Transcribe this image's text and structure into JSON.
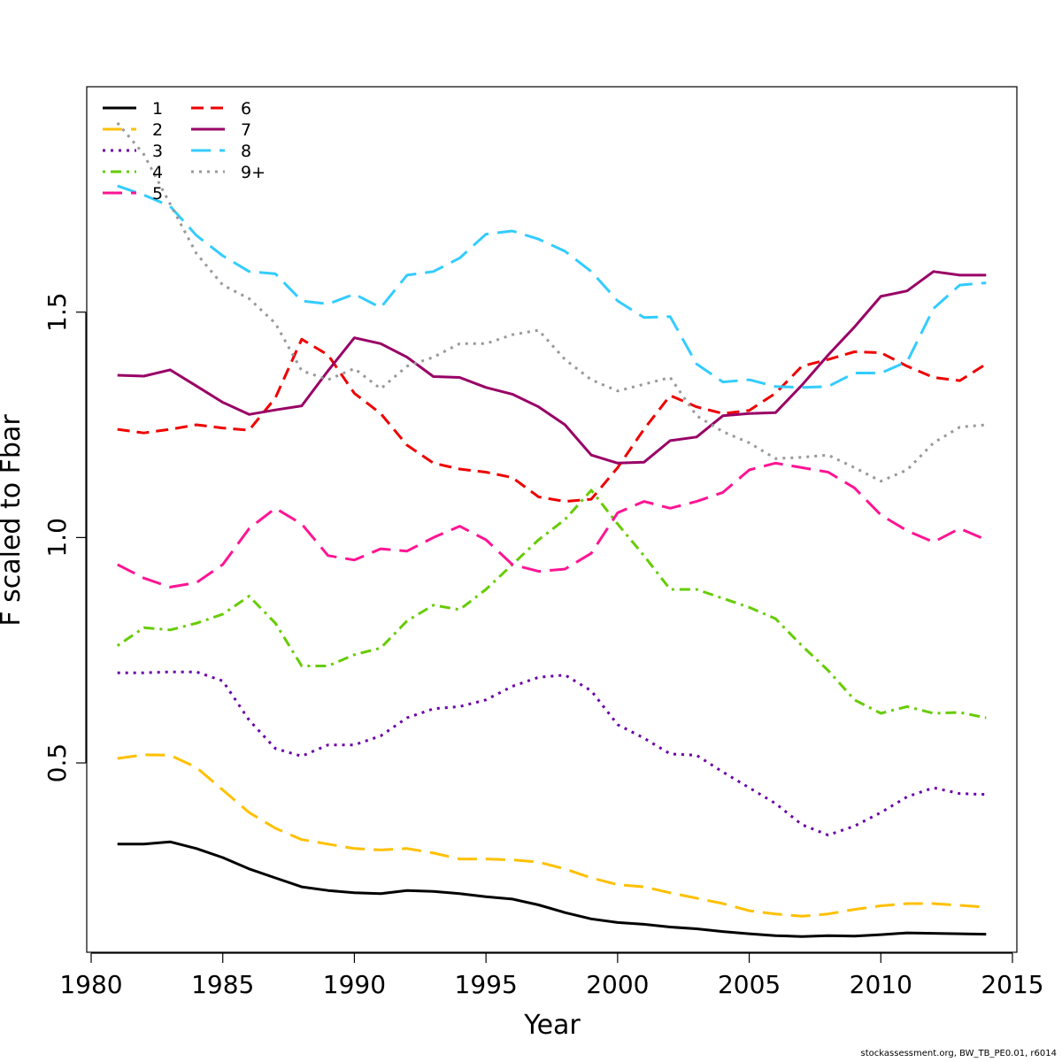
{
  "chart_data": {
    "type": "line",
    "xlabel": "Year",
    "ylabel": "F scaled to Fbar",
    "xlim": [
      1980,
      2015
    ],
    "ylim": [
      0.08,
      2.0
    ],
    "x_ticks": [
      "1980",
      "1985",
      "1990",
      "1995",
      "2000",
      "2005",
      "2010",
      "2015"
    ],
    "y_ticks": [
      "0.5",
      "1.0",
      "1.5"
    ],
    "grid": false,
    "legend_position": "top-left",
    "x": [
      1981,
      1982,
      1983,
      1984,
      1985,
      1986,
      1987,
      1988,
      1989,
      1990,
      1991,
      1992,
      1993,
      1994,
      1995,
      1996,
      1997,
      1998,
      1999,
      2000,
      2001,
      2002,
      2003,
      2004,
      2005,
      2006,
      2007,
      2008,
      2009,
      2010,
      2011,
      2012,
      2013,
      2014
    ],
    "series": [
      {
        "name": "1",
        "color": "#000000",
        "dash": "solid",
        "values": [
          0.32,
          0.32,
          0.325,
          0.31,
          0.29,
          0.265,
          0.245,
          0.225,
          0.217,
          0.212,
          0.21,
          0.217,
          0.215,
          0.21,
          0.203,
          0.198,
          0.185,
          0.168,
          0.154,
          0.146,
          0.142,
          0.136,
          0.132,
          0.126,
          0.121,
          0.117,
          0.115,
          0.117,
          0.116,
          0.119,
          0.123,
          0.122,
          0.121,
          0.12
        ]
      },
      {
        "name": "2",
        "color": "#FFC000",
        "dash": "longdash",
        "values": [
          0.51,
          0.518,
          0.517,
          0.49,
          0.44,
          0.39,
          0.355,
          0.33,
          0.32,
          0.31,
          0.307,
          0.31,
          0.3,
          0.287,
          0.287,
          0.285,
          0.28,
          0.265,
          0.245,
          0.23,
          0.225,
          0.212,
          0.2,
          0.188,
          0.172,
          0.165,
          0.16,
          0.165,
          0.175,
          0.183,
          0.188,
          0.188,
          0.184,
          0.18
        ]
      },
      {
        "name": "3",
        "color": "#6A00A8",
        "dash": "dotted",
        "values": [
          0.7,
          0.7,
          0.702,
          0.702,
          0.682,
          0.595,
          0.532,
          0.515,
          0.54,
          0.54,
          0.56,
          0.6,
          0.62,
          0.625,
          0.64,
          0.67,
          0.69,
          0.695,
          0.66,
          0.585,
          0.555,
          0.52,
          0.517,
          0.48,
          0.445,
          0.41,
          0.363,
          0.34,
          0.36,
          0.39,
          0.425,
          0.445,
          0.432,
          0.43
        ]
      },
      {
        "name": "4",
        "color": "#66CC00",
        "dash": "dotdash",
        "values": [
          0.76,
          0.8,
          0.795,
          0.81,
          0.83,
          0.87,
          0.81,
          0.715,
          0.715,
          0.74,
          0.755,
          0.815,
          0.85,
          0.84,
          0.885,
          0.94,
          0.995,
          1.04,
          1.105,
          1.03,
          0.96,
          0.885,
          0.885,
          0.865,
          0.845,
          0.82,
          0.76,
          0.705,
          0.64,
          0.61,
          0.625,
          0.61,
          0.612,
          0.6
        ]
      },
      {
        "name": "5",
        "color": "#FF1493",
        "dash": "longdash",
        "values": [
          0.94,
          0.91,
          0.89,
          0.9,
          0.94,
          1.02,
          1.065,
          1.03,
          0.96,
          0.95,
          0.975,
          0.97,
          1.0,
          1.025,
          0.995,
          0.94,
          0.925,
          0.93,
          0.965,
          1.055,
          1.08,
          1.065,
          1.08,
          1.1,
          1.15,
          1.165,
          1.155,
          1.145,
          1.11,
          1.05,
          1.015,
          0.99,
          1.02,
          0.995
        ]
      },
      {
        "name": "6",
        "color": "#EE0000",
        "dash": "dashed",
        "values": [
          1.24,
          1.232,
          1.24,
          1.25,
          1.243,
          1.238,
          1.31,
          1.44,
          1.405,
          1.32,
          1.275,
          1.205,
          1.165,
          1.152,
          1.145,
          1.133,
          1.09,
          1.08,
          1.085,
          1.155,
          1.24,
          1.315,
          1.29,
          1.275,
          1.282,
          1.32,
          1.38,
          1.395,
          1.412,
          1.41,
          1.38,
          1.355,
          1.348,
          1.385
        ]
      },
      {
        "name": "7",
        "color": "#990066",
        "dash": "solid",
        "values": [
          1.36,
          1.358,
          1.372,
          1.336,
          1.3,
          1.273,
          1.283,
          1.292,
          1.37,
          1.443,
          1.43,
          1.4,
          1.357,
          1.355,
          1.333,
          1.318,
          1.29,
          1.25,
          1.183,
          1.165,
          1.167,
          1.215,
          1.223,
          1.27,
          1.275,
          1.277,
          1.338,
          1.405,
          1.467,
          1.535,
          1.547,
          1.59,
          1.582,
          1.582
        ]
      },
      {
        "name": "8",
        "color": "#33CCFF",
        "dash": "longdash",
        "values": [
          1.78,
          1.76,
          1.735,
          1.67,
          1.625,
          1.59,
          1.585,
          1.525,
          1.518,
          1.54,
          1.51,
          1.582,
          1.59,
          1.62,
          1.673,
          1.68,
          1.662,
          1.635,
          1.59,
          1.525,
          1.488,
          1.49,
          1.385,
          1.345,
          1.35,
          1.335,
          1.333,
          1.335,
          1.365,
          1.365,
          1.39,
          1.508,
          1.56,
          1.565
        ]
      },
      {
        "name": "9+",
        "color": "#999999",
        "dash": "dotted",
        "values": [
          1.92,
          1.85,
          1.74,
          1.63,
          1.56,
          1.53,
          1.475,
          1.37,
          1.35,
          1.375,
          1.33,
          1.38,
          1.4,
          1.43,
          1.43,
          1.45,
          1.46,
          1.395,
          1.35,
          1.325,
          1.34,
          1.355,
          1.27,
          1.235,
          1.21,
          1.175,
          1.178,
          1.183,
          1.155,
          1.125,
          1.15,
          1.21,
          1.245,
          1.25
        ]
      }
    ]
  },
  "footer": {
    "credit": "stockassessment.org, BW_TB_PE0.01, r6014"
  }
}
